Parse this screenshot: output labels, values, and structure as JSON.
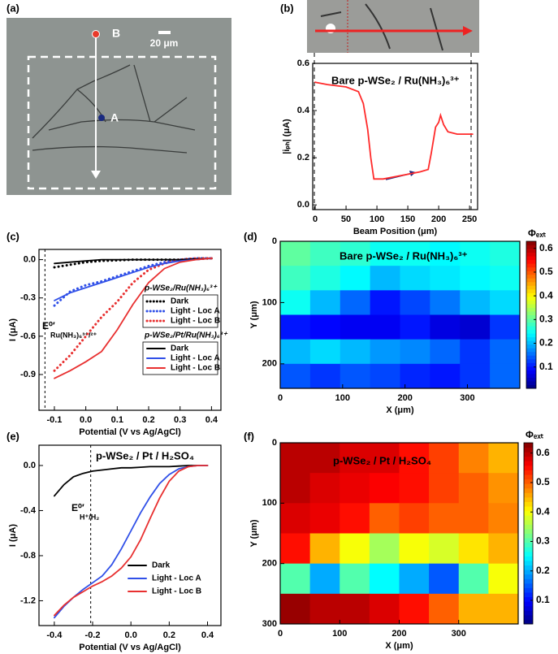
{
  "panel_labels": [
    "(a)",
    "(b)",
    "(c)",
    "(d)",
    "(e)",
    "(f)"
  ],
  "micrograph": {
    "point_labels": [
      "B",
      "A"
    ],
    "scale_bar": "20 μm"
  },
  "chart_data": [
    {
      "type": "line",
      "title": "Bare p-WSe₂ / Ru(NH₃)₆³⁺",
      "xlabel": "Beam Position (μm)",
      "ylabel": "|iₚₕ| (μA)",
      "x": [
        0,
        20,
        50,
        70,
        78,
        85,
        90,
        95,
        110,
        130,
        150,
        170,
        183,
        188,
        195,
        200,
        203,
        208,
        215,
        230,
        255
      ],
      "series": [
        {
          "color": "#ff2a2a",
          "dash": "solid",
          "values": [
            0.52,
            0.51,
            0.5,
            0.48,
            0.43,
            0.32,
            0.2,
            0.11,
            0.11,
            0.12,
            0.13,
            0.14,
            0.15,
            0.22,
            0.33,
            0.35,
            0.38,
            0.34,
            0.31,
            0.3,
            0.3
          ]
        }
      ],
      "xlim": [
        -4,
        263
      ],
      "xticks": [
        0,
        50,
        100,
        150,
        200,
        250
      ],
      "ylim": [
        -0.02,
        0.6
      ],
      "yticks": [
        {
          "value": 0,
          "label": "0.0"
        },
        0.2,
        0.4,
        0.6
      ]
    },
    {
      "type": "line",
      "xlabel": "Potential (V vs Ag/AgCl)",
      "ylabel": "I (μA)",
      "x": [
        -0.1,
        -0.05,
        0,
        0.05,
        0.1,
        0.15,
        0.2,
        0.25,
        0.3,
        0.35,
        0.4
      ],
      "legend_titles": [
        "p-WSe₂/Ru(NH₃)₆³⁺",
        "p-WSe₂/Pt/Ru(NH₃)₆³⁺"
      ],
      "series": [
        {
          "name": "Dark",
          "color": "#000000",
          "dash": "dotted",
          "legend_group": 0,
          "values": [
            -0.06,
            -0.04,
            -0.02,
            -0.01,
            -0.005,
            0,
            0,
            0,
            0,
            0.005,
            0.01
          ]
        },
        {
          "name": "Light - Loc A",
          "color": "#3050e8",
          "dash": "dotted",
          "legend_group": 0,
          "values": [
            -0.36,
            -0.25,
            -0.2,
            -0.17,
            -0.13,
            -0.09,
            -0.05,
            -0.02,
            0,
            0.01,
            0.01
          ]
        },
        {
          "name": "Light - Loc B",
          "color": "#e83030",
          "dash": "dotted",
          "legend_group": 0,
          "values": [
            -0.87,
            -0.75,
            -0.6,
            -0.45,
            -0.33,
            -0.18,
            -0.08,
            -0.03,
            0,
            0.01,
            0.01
          ]
        },
        {
          "name": "Dark",
          "color": "#000000",
          "dash": "solid",
          "legend_group": 1,
          "values": [
            -0.03,
            -0.02,
            -0.01,
            0,
            0,
            0,
            0,
            0,
            0,
            0.005,
            0.01
          ]
        },
        {
          "name": "Light - Loc A",
          "color": "#3050e8",
          "dash": "solid",
          "legend_group": 1,
          "values": [
            -0.32,
            -0.26,
            -0.22,
            -0.18,
            -0.14,
            -0.1,
            -0.06,
            -0.03,
            -0.01,
            0,
            0.01
          ]
        },
        {
          "name": "Light - Loc B",
          "color": "#e83030",
          "dash": "solid",
          "legend_group": 1,
          "values": [
            -0.93,
            -0.87,
            -0.8,
            -0.72,
            -0.55,
            -0.35,
            -0.18,
            -0.07,
            -0.02,
            0,
            0.01
          ]
        }
      ],
      "vline": -0.13,
      "annotation": {
        "main": "E⁰′",
        "sub": "Ru(NH₃)₆³⁺/²⁺"
      },
      "xlim": [
        -0.149,
        0.43
      ],
      "xticks": [
        -0.1,
        {
          "value": 0,
          "label": "0.0"
        },
        0.1,
        0.2,
        0.3,
        0.4
      ],
      "ylim": [
        -1.18,
        0.08
      ],
      "yticks": [
        {
          "value": 0,
          "label": "0.0"
        },
        -0.3,
        -0.6,
        -0.9
      ]
    },
    {
      "type": "heatmap",
      "title": "Bare p-WSe₂ / Ru(NH₃)₆³⁺",
      "xlabel": "X (μm)",
      "ylabel": "Y (μm)",
      "colorbar_label": "Φₑₓₜ",
      "colormap": "jet",
      "xbins": [
        0,
        48,
        96,
        144,
        192,
        240,
        288,
        336,
        384
      ],
      "ybins": [
        0,
        40,
        80,
        120,
        160,
        200,
        240
      ],
      "z": [
        [
          0.3,
          0.28,
          0.27,
          0.25,
          0.25,
          0.24,
          0.25,
          0.26
        ],
        [
          0.28,
          0.26,
          0.24,
          0.2,
          0.22,
          0.23,
          0.24,
          0.25
        ],
        [
          0.25,
          0.2,
          0.15,
          0.1,
          0.13,
          0.16,
          0.2,
          0.22
        ],
        [
          0.1,
          0.09,
          0.08,
          0.08,
          0.1,
          0.07,
          0.06,
          0.12
        ],
        [
          0.2,
          0.22,
          0.2,
          0.18,
          0.17,
          0.15,
          0.12,
          0.15
        ],
        [
          0.14,
          0.12,
          0.14,
          0.13,
          0.11,
          0.1,
          0.12,
          0.15
        ]
      ],
      "xlim": [
        0,
        384
      ],
      "xticks": [
        0,
        100,
        200,
        300
      ],
      "ylim": [
        0,
        240
      ],
      "yticks": [
        0,
        100,
        200
      ],
      "zlim": [
        0.01,
        0.63
      ],
      "zticks": [
        0.1,
        0.2,
        0.3,
        0.4,
        0.5,
        0.6
      ]
    },
    {
      "type": "line",
      "title": "p-WSe₂ / Pt / H₂SO₄",
      "xlabel": "Potential (V vs Ag/AgCl)",
      "ylabel": "I (μA)",
      "x": [
        -0.4,
        -0.35,
        -0.3,
        -0.25,
        -0.2,
        -0.15,
        -0.1,
        -0.05,
        0,
        0.05,
        0.1,
        0.15,
        0.2,
        0.25,
        0.3,
        0.35,
        0.4
      ],
      "series": [
        {
          "name": "Dark",
          "color": "#000000",
          "dash": "solid",
          "values": [
            -0.27,
            -0.17,
            -0.1,
            -0.07,
            -0.05,
            -0.04,
            -0.03,
            -0.02,
            -0.02,
            -0.015,
            -0.01,
            -0.01,
            -0.01,
            -0.005,
            0,
            0,
            0
          ]
        },
        {
          "name": "Light - Loc A",
          "color": "#3050e8",
          "dash": "solid",
          "values": [
            -1.35,
            -1.25,
            -1.17,
            -1.1,
            -1.04,
            -0.98,
            -0.88,
            -0.74,
            -0.58,
            -0.42,
            -0.28,
            -0.16,
            -0.08,
            -0.03,
            -0.01,
            0,
            0
          ]
        },
        {
          "name": "Light - Loc B",
          "color": "#e83030",
          "dash": "solid",
          "values": [
            -1.33,
            -1.24,
            -1.17,
            -1.12,
            -1.07,
            -1.03,
            -0.98,
            -0.91,
            -0.81,
            -0.66,
            -0.47,
            -0.29,
            -0.14,
            -0.05,
            -0.01,
            0,
            0
          ]
        }
      ],
      "vline": -0.21,
      "annotation": {
        "main": "E⁰′",
        "sub": "H⁺/H₂"
      },
      "xlim": [
        -0.48,
        0.47
      ],
      "xticks": [
        -0.4,
        -0.2,
        {
          "value": 0,
          "label": "0.0"
        },
        0.2,
        0.4
      ],
      "ylim": [
        -1.42,
        0.18
      ],
      "yticks": [
        {
          "value": 0,
          "label": "0.0"
        },
        -0.4,
        -0.8,
        -1.2
      ]
    },
    {
      "type": "heatmap",
      "title": "p-WSe₂ / Pt / H₂SO₄",
      "xlabel": "X (μm)",
      "ylabel": "Y (μm)",
      "colorbar_label": "Φₑₓₜ",
      "colormap": "jet",
      "xbins": [
        0,
        50,
        100,
        150,
        200,
        250,
        300,
        350,
        400
      ],
      "ybins": [
        0,
        50,
        100,
        150,
        200,
        250,
        300
      ],
      "z": [
        [
          0.6,
          0.6,
          0.58,
          0.58,
          0.55,
          0.52,
          0.48,
          0.45
        ],
        [
          0.6,
          0.58,
          0.57,
          0.56,
          0.55,
          0.52,
          0.5,
          0.47
        ],
        [
          0.58,
          0.57,
          0.55,
          0.5,
          0.52,
          0.5,
          0.5,
          0.48
        ],
        [
          0.55,
          0.45,
          0.4,
          0.35,
          0.4,
          0.38,
          0.42,
          0.45
        ],
        [
          0.3,
          0.2,
          0.3,
          0.25,
          0.2,
          0.15,
          0.3,
          0.4
        ],
        [
          0.62,
          0.6,
          0.6,
          0.58,
          0.55,
          0.5,
          0.45,
          0.45
        ]
      ],
      "xlim": [
        0,
        400
      ],
      "xticks": [
        0,
        100,
        200,
        300
      ],
      "ylim": [
        0,
        300
      ],
      "yticks": [
        0,
        100,
        200,
        300
      ],
      "zlim": [
        0.02,
        0.635
      ],
      "zticks": [
        0.1,
        0.2,
        0.3,
        0.4,
        0.5,
        0.6
      ]
    }
  ]
}
